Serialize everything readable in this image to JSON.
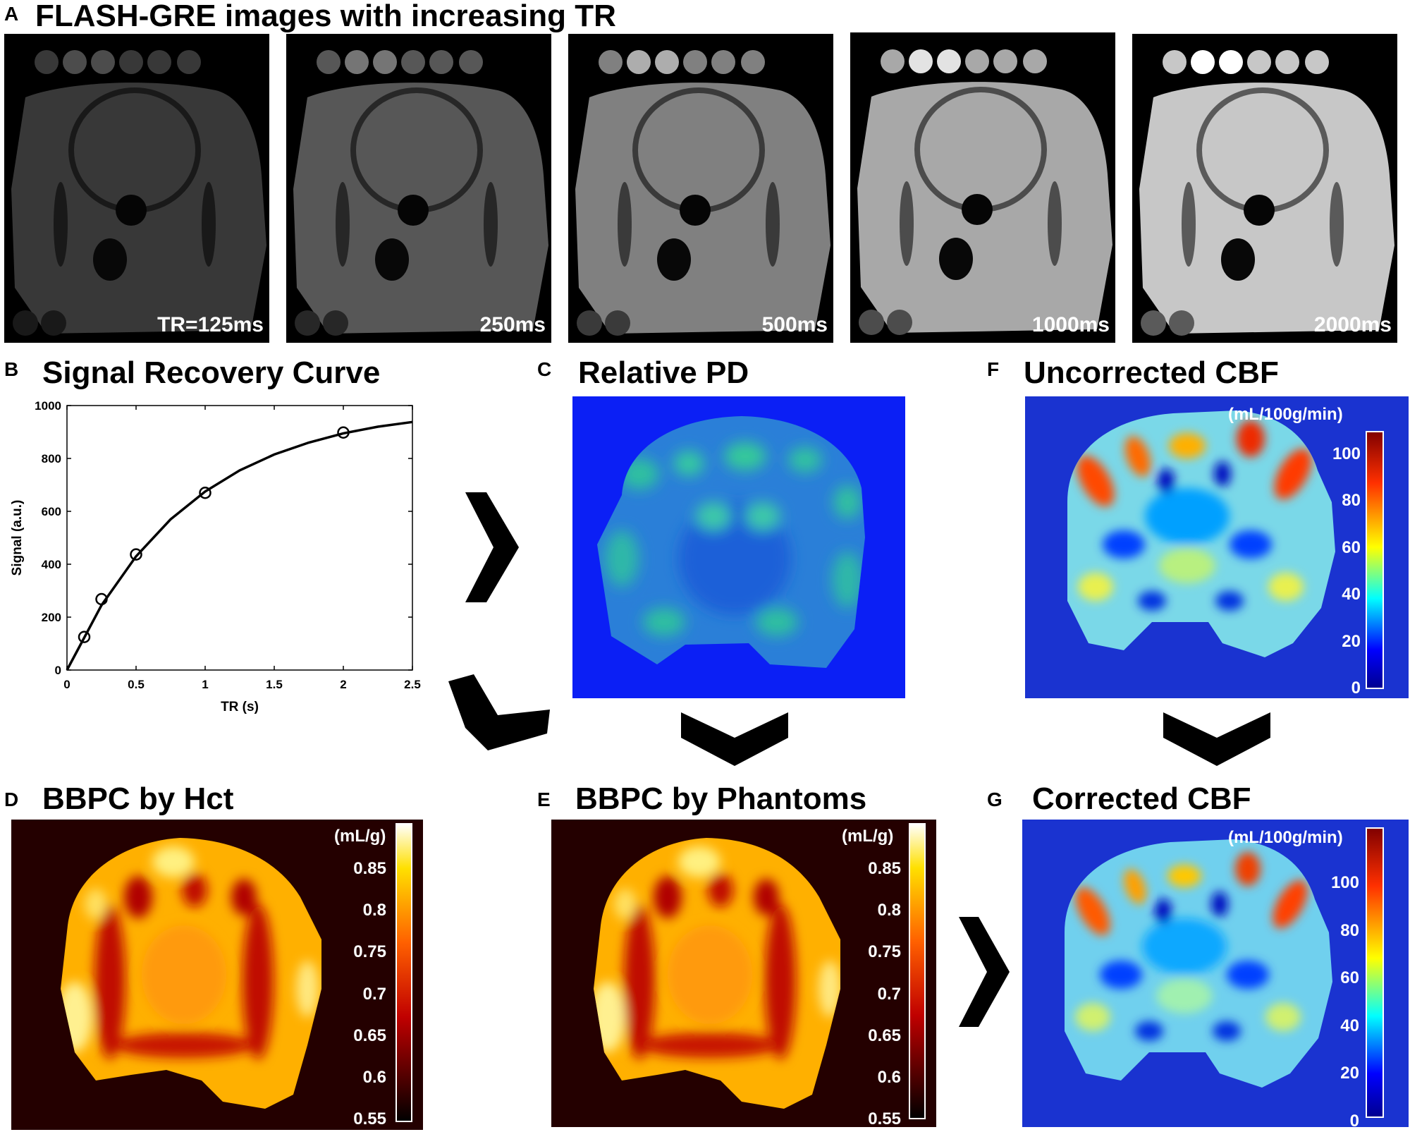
{
  "panel_a": {
    "letter": "A",
    "title": "FLASH-GRE images with increasing TR",
    "images": [
      {
        "label": "TR=125ms",
        "brightness": 0.22
      },
      {
        "label": "250ms",
        "brightness": 0.34
      },
      {
        "label": "500ms",
        "brightness": 0.5
      },
      {
        "label": "1000ms",
        "brightness": 0.66
      },
      {
        "label": "2000ms",
        "brightness": 0.78
      }
    ]
  },
  "panel_b": {
    "letter": "B",
    "title": "Signal Recovery Curve"
  },
  "panel_c": {
    "letter": "C",
    "title": "Relative PD"
  },
  "panel_d": {
    "letter": "D",
    "title": "BBPC by Hct",
    "unit": "(mL/g)",
    "ticks": [
      "0.85",
      "0.8",
      "0.75",
      "0.7",
      "0.65",
      "0.6",
      "0.55"
    ]
  },
  "panel_e": {
    "letter": "E",
    "title": "BBPC by Phantoms",
    "unit": "(mL/g)",
    "ticks": [
      "0.85",
      "0.8",
      "0.75",
      "0.7",
      "0.65",
      "0.6",
      "0.55"
    ]
  },
  "panel_f": {
    "letter": "F",
    "title": "Uncorrected CBF",
    "unit": "(mL/100g/min)",
    "ticks": [
      "100",
      "80",
      "60",
      "40",
      "20",
      "0"
    ]
  },
  "panel_g": {
    "letter": "G",
    "title": "Corrected CBF",
    "unit": "(mL/100g/min)",
    "ticks": [
      "100",
      "80",
      "60",
      "40",
      "20",
      "0"
    ]
  },
  "colors": {
    "jet_background": "#1a33d0",
    "hot_background": "#240000",
    "pd_background": "#0b1ff5"
  },
  "chart_data": {
    "type": "scatter",
    "title": "Signal Recovery Curve",
    "xlabel": "TR (s)",
    "ylabel": "Signal (a.u.)",
    "xlim": [
      0,
      2.5
    ],
    "ylim": [
      0,
      1000
    ],
    "xticks": [
      "0",
      "0.5",
      "1",
      "1.5",
      "2",
      "2.5"
    ],
    "yticks": [
      "0",
      "200",
      "400",
      "600",
      "800",
      "1000"
    ],
    "points": {
      "x": [
        0.125,
        0.25,
        0.5,
        1,
        2
      ],
      "y": [
        125,
        268,
        437,
        670,
        898
      ]
    },
    "fit_curve": {
      "x": [
        0,
        0.25,
        0.5,
        0.75,
        1,
        1.25,
        1.5,
        1.75,
        2,
        2.25,
        2.5
      ],
      "y": [
        0,
        245,
        430,
        570,
        675,
        755,
        815,
        860,
        895,
        920,
        938
      ]
    },
    "grid": false
  }
}
